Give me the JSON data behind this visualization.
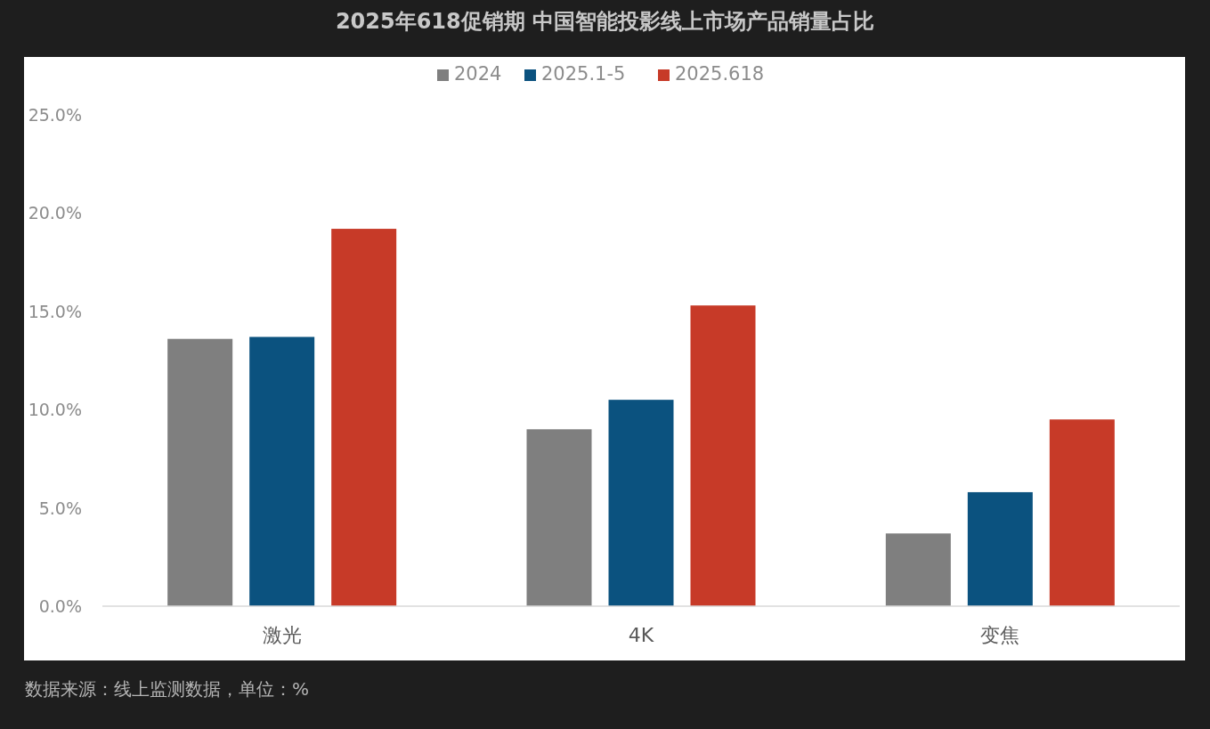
{
  "chart_data": {
    "type": "bar",
    "title": "2025年618促销期 中国智能投影线上市场产品销量占比",
    "categories": [
      "激光",
      "4K",
      "变焦"
    ],
    "series": [
      {
        "name": "2024",
        "color": "#7f7f7f",
        "values": [
          13.6,
          9.0,
          3.7
        ]
      },
      {
        "name": "2025.1-5",
        "color": "#0b527f",
        "values": [
          13.7,
          10.5,
          5.8
        ]
      },
      {
        "name": "2025.618",
        "color": "#c73a28",
        "values": [
          19.2,
          15.3,
          9.5
        ]
      }
    ],
    "ylim": [
      0,
      25
    ],
    "yticks": [
      {
        "value": 0,
        "label": "0.0%"
      },
      {
        "value": 5,
        "label": "5.0%"
      },
      {
        "value": 10,
        "label": "10.0%"
      },
      {
        "value": 15,
        "label": "15.0%"
      },
      {
        "value": 20,
        "label": "20.0%"
      },
      {
        "value": 25,
        "label": "25.0%"
      }
    ],
    "legend": "top",
    "annotations": [
      "数据来源：线上监测数据，单位：%"
    ]
  }
}
